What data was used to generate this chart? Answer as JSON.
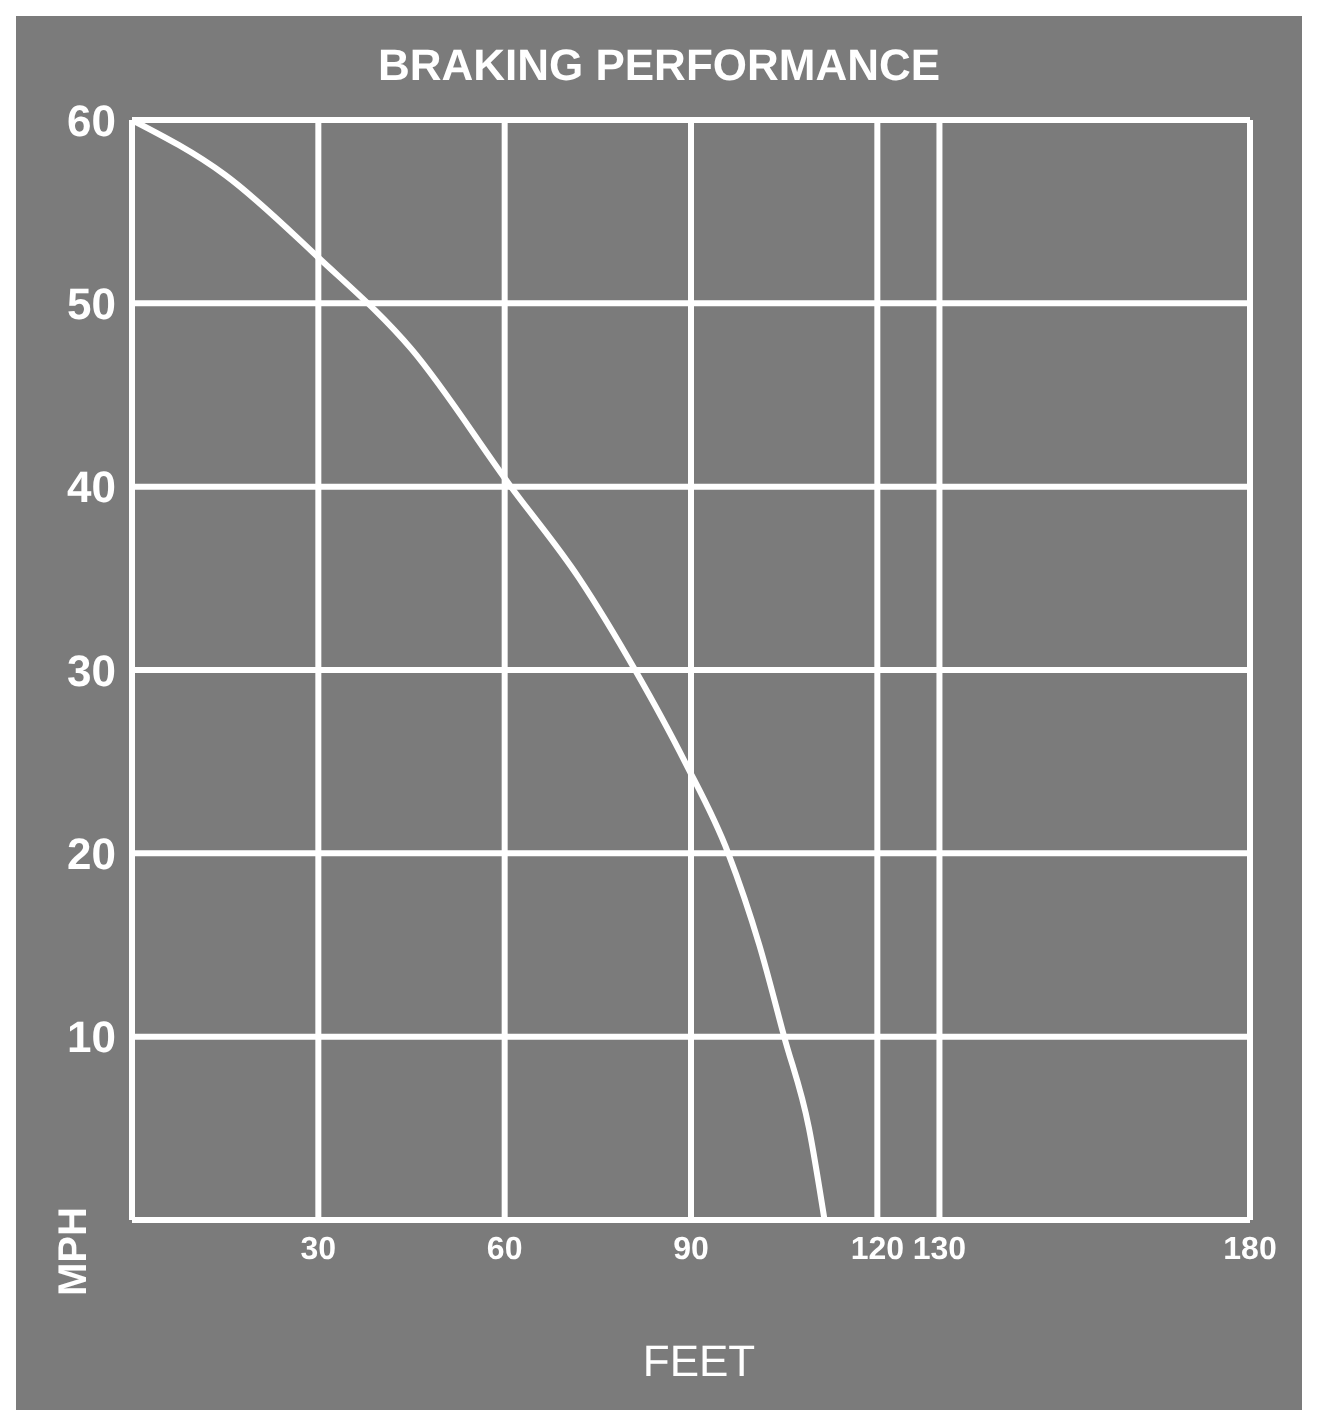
{
  "chart_data": {
    "type": "line",
    "title": "BRAKING PERFORMANCE",
    "xlabel": "FEET",
    "ylabel": "MPH",
    "x": [
      0,
      15,
      30,
      45,
      61,
      72,
      81,
      89,
      96,
      101,
      105,
      109,
      111.5
    ],
    "series": [
      {
        "color": "#ffffff",
        "values": [
          60,
          57,
          52.5,
          47.5,
          40,
          35,
          30,
          25,
          20,
          15,
          10,
          5,
          0
        ]
      }
    ],
    "xlim": [
      0,
      180
    ],
    "xticks": [
      30,
      60,
      90,
      120,
      130,
      180
    ],
    "ylim": [
      0,
      60
    ],
    "yticks": [
      10,
      20,
      30,
      40,
      50,
      60
    ],
    "grid": true,
    "marker": "none",
    "line_style": "solid"
  }
}
